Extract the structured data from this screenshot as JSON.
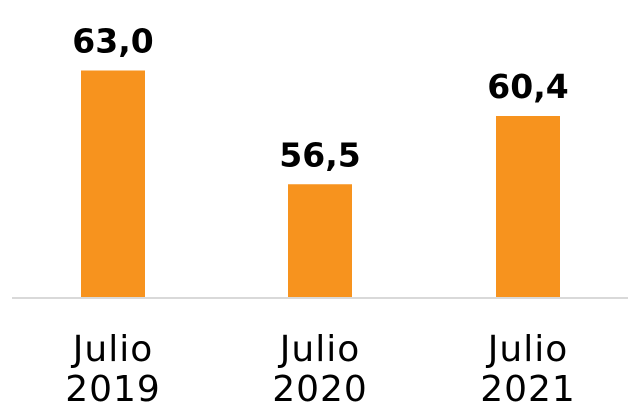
{
  "chart_data": {
    "type": "bar",
    "categories": [
      "Julio 2019",
      "Julio 2020",
      "Julio 2021"
    ],
    "values": [
      63.0,
      56.5,
      60.4
    ],
    "value_labels": [
      "63,0",
      "56,5",
      "60,4"
    ],
    "color": "#f7931e",
    "ylim": [
      50,
      66
    ]
  }
}
